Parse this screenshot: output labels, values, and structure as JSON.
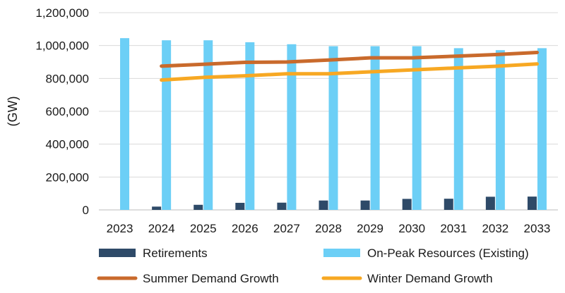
{
  "chart_data": {
    "type": "bar",
    "ylabel": "(GW)",
    "xlabel": "",
    "ylim": [
      0,
      1200000
    ],
    "yticks": [
      0,
      200000,
      400000,
      600000,
      800000,
      1000000,
      1200000
    ],
    "ytick_labels": [
      "0",
      "200,000",
      "400,000",
      "600,000",
      "800,000",
      "1,000,000",
      "1,200,000"
    ],
    "grid": true,
    "legend_position": "bottom",
    "categories": [
      "2023",
      "2024",
      "2025",
      "2026",
      "2027",
      "2028",
      "2029",
      "2030",
      "2031",
      "2032",
      "2033"
    ],
    "series": [
      {
        "name": "Retirements",
        "kind": "bar",
        "color": "#2e4a68",
        "values": [
          0,
          20000,
          31000,
          43000,
          44000,
          57000,
          57000,
          67000,
          68000,
          80000,
          81000
        ]
      },
      {
        "name": "On-Peak Resources  (Existing)",
        "kind": "bar",
        "color": "#6ccff6",
        "values": [
          1045000,
          1032000,
          1032000,
          1020000,
          1008000,
          996000,
          996000,
          996000,
          984000,
          972000,
          984000
        ]
      },
      {
        "name": "Summer Demand Growth",
        "kind": "line",
        "color": "#c96a2c",
        "values": [
          null,
          875000,
          886000,
          898000,
          900000,
          912000,
          925000,
          925000,
          935000,
          945000,
          958000
        ]
      },
      {
        "name": "Winter Demand Growth",
        "kind": "line",
        "color": "#f7a823",
        "values": [
          null,
          790000,
          806000,
          816000,
          828000,
          828000,
          840000,
          852000,
          863000,
          874000,
          888000
        ]
      }
    ]
  }
}
